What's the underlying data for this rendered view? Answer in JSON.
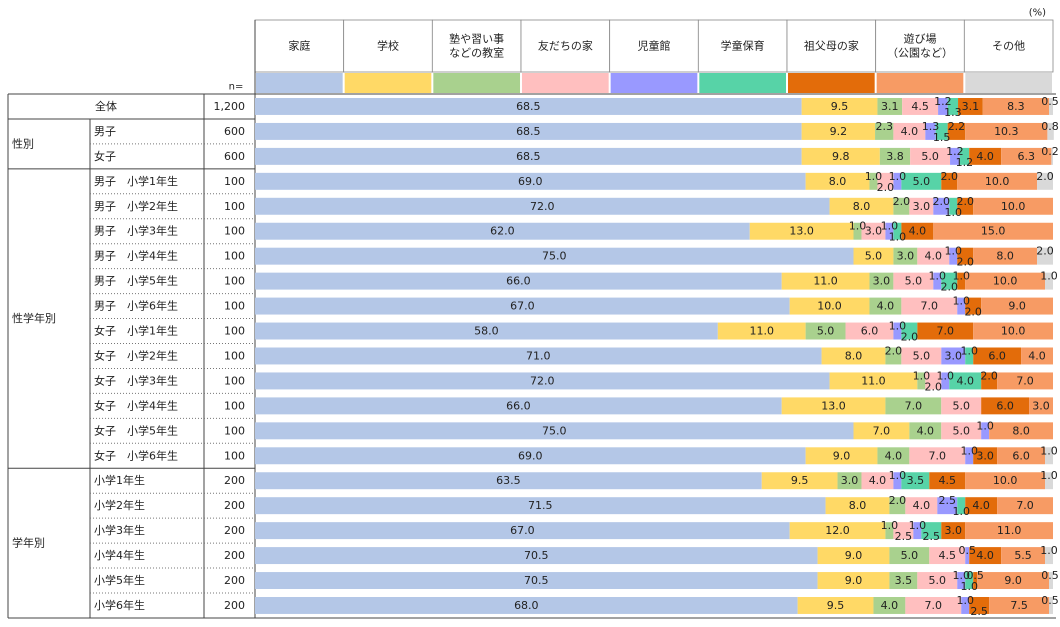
{
  "chart_data": {
    "type": "bar",
    "orientation": "horizontal",
    "stacked": true,
    "unit_label": "(%)",
    "n_label": "n=",
    "xlim": [
      0,
      100
    ],
    "series": [
      {
        "name": "家庭",
        "lines": [
          "家庭"
        ],
        "color": "#b4c7e7"
      },
      {
        "name": "学校",
        "lines": [
          "学校"
        ],
        "color": "#ffd966"
      },
      {
        "name": "塾や習い事などの教室",
        "lines": [
          "塾や習い事",
          "などの教室"
        ],
        "color": "#a9d18e"
      },
      {
        "name": "友だちの家",
        "lines": [
          "友だちの家"
        ],
        "color": "#ffbfbf"
      },
      {
        "name": "児童館",
        "lines": [
          "児童館"
        ],
        "color": "#9999ff"
      },
      {
        "name": "学童保育",
        "lines": [
          "学童保育"
        ],
        "color": "#57d3a7"
      },
      {
        "name": "祖父母の家",
        "lines": [
          "祖父母の家"
        ],
        "color": "#e36c0a"
      },
      {
        "name": "遊び場（公園など）",
        "lines": [
          "遊び場",
          "（公園など）"
        ],
        "color": "#f79b64"
      },
      {
        "name": "その他",
        "lines": [
          "その他"
        ],
        "color": "#d9d9d9"
      }
    ],
    "groups": [
      {
        "name": "",
        "span": 1
      },
      {
        "name": "性別",
        "span": 2
      },
      {
        "name": "性学年別",
        "span": 12
      },
      {
        "name": "学年別",
        "span": 6
      }
    ],
    "rows": [
      {
        "label": "全体",
        "n": "1,200",
        "values": [
          68.5,
          9.5,
          3.1,
          4.5,
          1.2,
          1.3,
          3.1,
          8.3,
          0.5
        ]
      },
      {
        "label": "男子",
        "n": "600",
        "values": [
          68.5,
          9.2,
          2.3,
          4.0,
          1.3,
          1.5,
          2.2,
          10.3,
          0.8
        ]
      },
      {
        "label": "女子",
        "n": "600",
        "values": [
          68.5,
          9.8,
          3.8,
          5.0,
          1.2,
          1.2,
          4.0,
          6.3,
          0.2
        ]
      },
      {
        "label": "男子　小学1年生",
        "n": "100",
        "values": [
          69.0,
          8.0,
          1.0,
          2.0,
          1.0,
          5.0,
          2.0,
          10.0,
          2.0
        ]
      },
      {
        "label": "男子　小学2年生",
        "n": "100",
        "values": [
          72.0,
          8.0,
          2.0,
          3.0,
          2.0,
          1.0,
          2.0,
          10.0,
          0.0
        ]
      },
      {
        "label": "男子　小学3年生",
        "n": "100",
        "values": [
          62.0,
          13.0,
          1.0,
          3.0,
          1.0,
          1.0,
          4.0,
          15.0,
          0.0
        ]
      },
      {
        "label": "男子　小学4年生",
        "n": "100",
        "values": [
          75.0,
          5.0,
          3.0,
          4.0,
          1.0,
          0.0,
          2.0,
          8.0,
          2.0
        ]
      },
      {
        "label": "男子　小学5年生",
        "n": "100",
        "values": [
          66.0,
          11.0,
          3.0,
          5.0,
          1.0,
          2.0,
          1.0,
          10.0,
          1.0
        ]
      },
      {
        "label": "男子　小学6年生",
        "n": "100",
        "values": [
          67.0,
          10.0,
          4.0,
          7.0,
          1.0,
          0.0,
          2.0,
          9.0,
          0.0
        ]
      },
      {
        "label": "女子　小学1年生",
        "n": "100",
        "values": [
          58.0,
          11.0,
          5.0,
          6.0,
          1.0,
          2.0,
          7.0,
          10.0,
          0.0
        ]
      },
      {
        "label": "女子　小学2年生",
        "n": "100",
        "values": [
          71.0,
          8.0,
          2.0,
          5.0,
          3.0,
          1.0,
          6.0,
          4.0,
          0.0
        ]
      },
      {
        "label": "女子　小学3年生",
        "n": "100",
        "values": [
          72.0,
          11.0,
          1.0,
          2.0,
          1.0,
          4.0,
          2.0,
          7.0,
          0.0
        ]
      },
      {
        "label": "女子　小学4年生",
        "n": "100",
        "values": [
          66.0,
          13.0,
          7.0,
          5.0,
          0.0,
          0.0,
          6.0,
          3.0,
          0.0
        ]
      },
      {
        "label": "女子　小学5年生",
        "n": "100",
        "values": [
          75.0,
          7.0,
          4.0,
          5.0,
          1.0,
          0.0,
          0.0,
          8.0,
          0.0
        ]
      },
      {
        "label": "女子　小学6年生",
        "n": "100",
        "values": [
          69.0,
          9.0,
          4.0,
          7.0,
          1.0,
          0.0,
          3.0,
          6.0,
          1.0
        ]
      },
      {
        "label": "小学1年生",
        "n": "200",
        "values": [
          63.5,
          9.5,
          3.0,
          4.0,
          1.0,
          3.5,
          4.5,
          10.0,
          1.0
        ]
      },
      {
        "label": "小学2年生",
        "n": "200",
        "values": [
          71.5,
          8.0,
          2.0,
          4.0,
          2.5,
          1.0,
          4.0,
          7.0,
          0.0
        ]
      },
      {
        "label": "小学3年生",
        "n": "200",
        "values": [
          67.0,
          12.0,
          1.0,
          2.5,
          1.0,
          2.5,
          3.0,
          11.0,
          0.0
        ]
      },
      {
        "label": "小学4年生",
        "n": "200",
        "values": [
          70.5,
          9.0,
          5.0,
          4.5,
          0.5,
          0.0,
          4.0,
          5.5,
          1.0
        ]
      },
      {
        "label": "小学5年生",
        "n": "200",
        "values": [
          70.5,
          9.0,
          3.5,
          5.0,
          1.0,
          1.0,
          0.5,
          9.0,
          0.5
        ]
      },
      {
        "label": "小学6年生",
        "n": "200",
        "values": [
          68.0,
          9.5,
          4.0,
          7.0,
          1.0,
          0.0,
          2.5,
          7.5,
          0.5
        ]
      }
    ]
  }
}
